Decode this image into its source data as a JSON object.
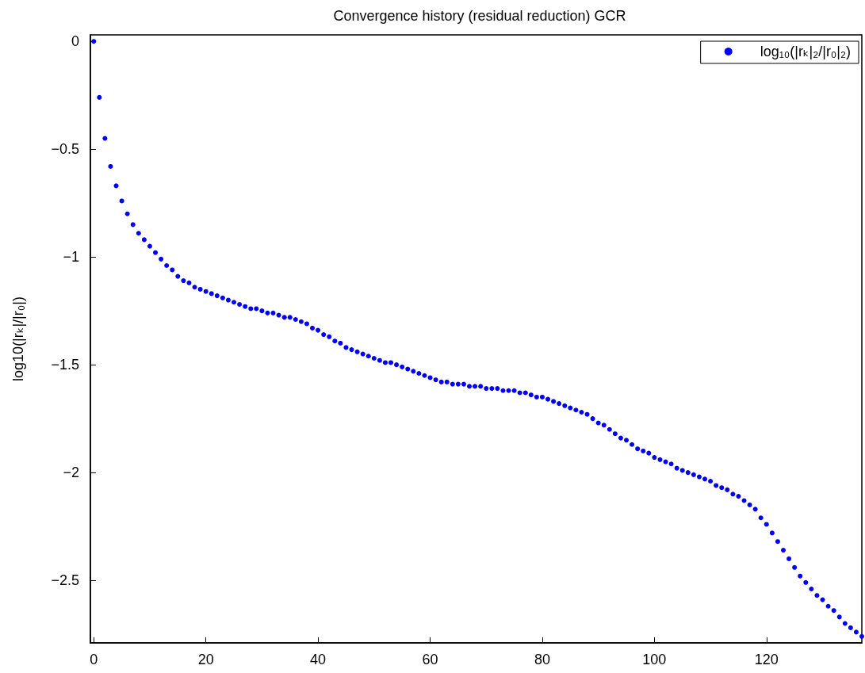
{
  "chart_data": {
    "type": "scatter",
    "title": "Convergence history (residual reduction) GCR",
    "ylabel": "log10(|rₖ|/|r₀|)",
    "x": [
      0,
      1,
      2,
      3,
      4,
      5,
      6,
      7,
      8,
      9,
      10,
      11,
      12,
      13,
      14,
      15,
      16,
      17,
      18,
      19,
      20,
      21,
      22,
      23,
      24,
      25,
      26,
      27,
      28,
      29,
      30,
      31,
      32,
      33,
      34,
      35,
      36,
      37,
      38,
      39,
      40,
      41,
      42,
      43,
      44,
      45,
      46,
      47,
      48,
      49,
      50,
      51,
      52,
      53,
      54,
      55,
      56,
      57,
      58,
      59,
      60,
      61,
      62,
      63,
      64,
      65,
      66,
      67,
      68,
      69,
      70,
      71,
      72,
      73,
      74,
      75,
      76,
      77,
      78,
      79,
      80,
      81,
      82,
      83,
      84,
      85,
      86,
      87,
      88,
      89,
      90,
      91,
      92,
      93,
      94,
      95,
      96,
      97,
      98,
      99,
      100,
      101,
      102,
      103,
      104,
      105,
      106,
      107,
      108,
      109,
      110,
      111,
      112,
      113,
      114,
      115,
      116,
      117,
      118,
      119,
      120,
      121,
      122,
      123,
      124,
      125,
      126,
      127,
      128,
      129,
      130,
      131,
      132,
      133,
      134,
      135,
      136,
      137
    ],
    "series": [
      {
        "name": "log₁₀(|rₖ|₂/|r₀|₂)",
        "color": "#0000ff",
        "values": [
          0,
          -0.26,
          -0.45,
          -0.58,
          -0.67,
          -0.74,
          -0.8,
          -0.85,
          -0.89,
          -0.92,
          -0.95,
          -0.98,
          -1.01,
          -1.04,
          -1.06,
          -1.09,
          -1.11,
          -1.12,
          -1.14,
          -1.15,
          -1.16,
          -1.17,
          -1.18,
          -1.19,
          -1.2,
          -1.21,
          -1.22,
          -1.23,
          -1.24,
          -1.24,
          -1.25,
          -1.26,
          -1.26,
          -1.27,
          -1.28,
          -1.28,
          -1.29,
          -1.3,
          -1.31,
          -1.33,
          -1.34,
          -1.36,
          -1.37,
          -1.39,
          -1.4,
          -1.42,
          -1.43,
          -1.44,
          -1.45,
          -1.46,
          -1.47,
          -1.48,
          -1.49,
          -1.49,
          -1.5,
          -1.51,
          -1.52,
          -1.53,
          -1.54,
          -1.55,
          -1.56,
          -1.57,
          -1.58,
          -1.58,
          -1.59,
          -1.59,
          -1.59,
          -1.6,
          -1.6,
          -1.6,
          -1.61,
          -1.61,
          -1.61,
          -1.62,
          -1.62,
          -1.62,
          -1.63,
          -1.63,
          -1.64,
          -1.65,
          -1.65,
          -1.66,
          -1.67,
          -1.68,
          -1.69,
          -1.7,
          -1.71,
          -1.72,
          -1.73,
          -1.75,
          -1.77,
          -1.78,
          -1.8,
          -1.82,
          -1.84,
          -1.85,
          -1.87,
          -1.89,
          -1.9,
          -1.91,
          -1.93,
          -1.94,
          -1.95,
          -1.96,
          -1.98,
          -1.99,
          -2,
          -2.01,
          -2.02,
          -2.03,
          -2.04,
          -2.06,
          -2.07,
          -2.08,
          -2.1,
          -2.11,
          -2.13,
          -2.15,
          -2.17,
          -2.21,
          -2.24,
          -2.28,
          -2.32,
          -2.36,
          -2.4,
          -2.44,
          -2.48,
          -2.51,
          -2.54,
          -2.57,
          -2.59,
          -2.62,
          -2.64,
          -2.67,
          -2.7,
          -2.72,
          -2.74,
          -2.76
        ]
      }
    ],
    "xlim": [
      -0.6,
      137
    ],
    "xticks": [
      0,
      20,
      40,
      60,
      80,
      100,
      120
    ],
    "ylim": [
      -2.79,
      0.03
    ],
    "yticks": [
      -2.5,
      -2,
      -1.5,
      -1,
      -0.5,
      0
    ],
    "grid": false,
    "legend": "top right",
    "marker": "circle"
  }
}
